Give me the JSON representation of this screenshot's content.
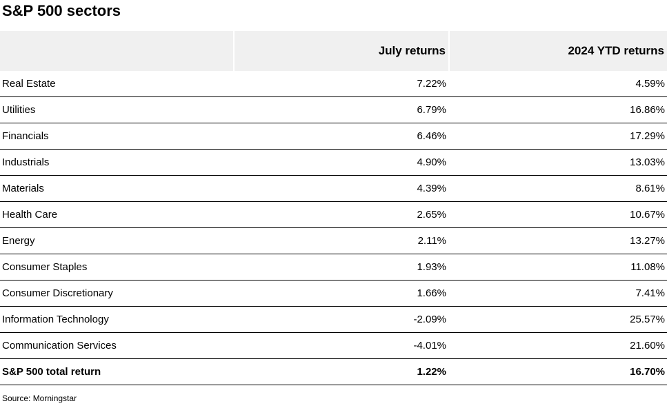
{
  "title": "S&P 500 sectors",
  "chart_data": {
    "type": "table",
    "title": "S&P 500 sectors",
    "columns": [
      "",
      "July returns",
      "2024 YTD returns"
    ],
    "rows": [
      {
        "name": "Real Estate",
        "july": "7.22%",
        "ytd": "4.59%"
      },
      {
        "name": "Utilities",
        "july": "6.79%",
        "ytd": "16.86%"
      },
      {
        "name": "Financials",
        "july": "6.46%",
        "ytd": "17.29%"
      },
      {
        "name": "Industrials",
        "july": "4.90%",
        "ytd": "13.03%"
      },
      {
        "name": "Materials",
        "july": "4.39%",
        "ytd": "8.61%"
      },
      {
        "name": "Health Care",
        "july": "2.65%",
        "ytd": "10.67%"
      },
      {
        "name": "Energy",
        "july": "2.11%",
        "ytd": "13.27%"
      },
      {
        "name": "Consumer Staples",
        "july": "1.93%",
        "ytd": "11.08%"
      },
      {
        "name": "Consumer Discretionary",
        "july": "1.66%",
        "ytd": "7.41%"
      },
      {
        "name": "Information Technology",
        "july": "-2.09%",
        "ytd": "25.57%"
      },
      {
        "name": "Communication Services",
        "july": "-4.01%",
        "ytd": "21.60%"
      }
    ],
    "total": {
      "name": "S&P 500 total return",
      "july": "1.22%",
      "ytd": "16.70%"
    }
  },
  "source": "Source: Morningstar",
  "colors": {
    "header_bg": "#f0f0f0",
    "rule": "#000000",
    "text": "#000000"
  }
}
